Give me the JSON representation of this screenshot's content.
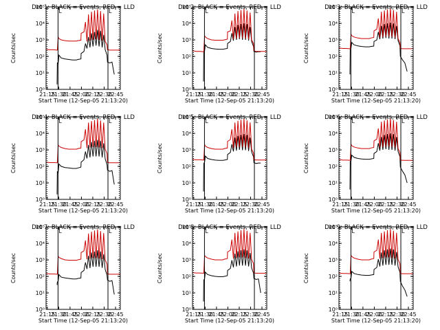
{
  "figure": {
    "background": "#ffffff",
    "events_color": "#000000",
    "lld_color": "#cc0000"
  },
  "chart_data": {
    "type": "line",
    "layout": "3x3 grid",
    "xlabel": "Start Time (12-Sep-05 21:13:20)",
    "ylabel": "Counts/sec",
    "yscale": "log",
    "ylim": [
      1,
      100000
    ],
    "ytick_labels": [
      "10⁰",
      "10¹",
      "10²",
      "10³",
      "10⁴",
      "10⁵"
    ],
    "xlim_minutes": [
      0,
      98
    ],
    "xtick_labels": [
      "21:15",
      "21:30",
      "21:45",
      "22:00",
      "22:15",
      "22:30",
      "22:45"
    ],
    "xtick_minutes": [
      1.67,
      16.67,
      31.67,
      46.67,
      61.67,
      76.67,
      91.67
    ],
    "markers_minutes": [
      15.8,
      81.7
    ],
    "marker_label": "L",
    "legend_text": "BLACK = Events, RED = LLD",
    "time_minutes": [
      0,
      5,
      10,
      14.5,
      14.9,
      16,
      17,
      20,
      25,
      30,
      35,
      40,
      42,
      46,
      46.3,
      50,
      52,
      54,
      56,
      58,
      60,
      62,
      64,
      66,
      68,
      70,
      72,
      74,
      76,
      78,
      80.5,
      81,
      84,
      87,
      90,
      95,
      98
    ],
    "panels": [
      {
        "title": "Det 1",
        "series": [
          {
            "name": "Events",
            "values": [
              null,
              null,
              null,
              2,
              40,
              35,
              120,
              80,
              70,
              65,
              60,
              60,
              65,
              70,
              150,
              200,
              600,
              300,
              1500,
              350,
              2500,
              400,
              3000,
              450,
              4000,
              400,
              3500,
              350,
              2000,
              250,
              120,
              45,
              40,
              45,
              8,
              null,
              null
            ]
          },
          {
            "name": "LLD",
            "values": [
              260,
              250,
              250,
              240,
              240,
              1500,
              1200,
              1000,
              900,
              850,
              850,
              850,
              900,
              950,
              2500,
              3000,
              12000,
              800,
              35000,
              900,
              50000,
              1000,
              60000,
              1100,
              70000,
              1000,
              55000,
              900,
              40000,
              800,
              500,
              250,
              240,
              240,
              240,
              240,
              250
            ]
          }
        ]
      },
      {
        "title": "Det 2",
        "series": [
          {
            "name": "Events",
            "values": [
              null,
              null,
              null,
              3,
              180,
              220,
              500,
              350,
              300,
              280,
              270,
              270,
              280,
              300,
              600,
              800,
              2500,
              900,
              6000,
              1000,
              8000,
              1100,
              9000,
              1000,
              10000,
              1000,
              9000,
              900,
              6000,
              800,
              400,
              200,
              180,
              190,
              190,
              null,
              null
            ]
          },
          {
            "name": "LLD",
            "values": [
              220,
              200,
              200,
              190,
              190,
              1800,
              1500,
              1200,
              1000,
              950,
              950,
              950,
              1000,
              1100,
              3000,
              3500,
              15000,
              1100,
              40000,
              1200,
              55000,
              1300,
              65000,
              1300,
              75000,
              1200,
              60000,
              1100,
              45000,
              1000,
              600,
              220,
              200,
              200,
              200,
              200,
              200
            ]
          }
        ]
      },
      {
        "title": "Det 3",
        "series": [
          {
            "name": "Events",
            "values": [
              null,
              null,
              null,
              8,
              300,
              320,
              700,
              500,
              430,
              400,
              380,
              380,
              400,
              420,
              800,
              1000,
              3000,
              1100,
              7000,
              1200,
              9000,
              1300,
              10000,
              1200,
              11000,
              1200,
              10000,
              1100,
              7000,
              900,
              450,
              100,
              60,
              40,
              12,
              null,
              null
            ]
          },
          {
            "name": "LLD",
            "values": [
              330,
              300,
              300,
              290,
              290,
              2200,
              1800,
              1500,
              1300,
              1200,
              1200,
              1200,
              1300,
              1400,
              3500,
              4500,
              20000,
              1400,
              50000,
              1500,
              60000,
              1600,
              70000,
              1600,
              80000,
              1500,
              65000,
              1400,
              50000,
              1200,
              700,
              300,
              290,
              290,
              290,
              290,
              300
            ]
          }
        ]
      },
      {
        "title": "Det 4",
        "series": [
          {
            "name": "Events",
            "values": [
              null,
              null,
              null,
              2,
              50,
              40,
              140,
              100,
              85,
              80,
              75,
              75,
              80,
              90,
              180,
              250,
              800,
              300,
              2000,
              350,
              3000,
              400,
              3500,
              400,
              4000,
              400,
              3500,
              350,
              2500,
              280,
              130,
              60,
              50,
              55,
              8,
              null,
              null
            ]
          },
          {
            "name": "LLD",
            "values": [
              180,
              170,
              170,
              165,
              165,
              2000,
              1700,
              1400,
              1200,
              1100,
              1100,
              1100,
              1200,
              1300,
              3200,
              4000,
              18000,
              1300,
              45000,
              1400,
              55000,
              1500,
              65000,
              1500,
              75000,
              1400,
              60000,
              1300,
              45000,
              1100,
              600,
              170,
              165,
              165,
              165,
              165,
              170
            ]
          }
        ]
      },
      {
        "title": "Det 5",
        "series": [
          {
            "name": "Events",
            "values": [
              null,
              null,
              null,
              3,
              150,
              180,
              420,
              300,
              260,
              240,
              230,
              230,
              240,
              260,
              520,
              700,
              2200,
              800,
              5500,
              900,
              7000,
              1000,
              8000,
              950,
              9000,
              950,
              8000,
              850,
              5500,
              750,
              380,
              170,
              150,
              160,
              160,
              null,
              null
            ]
          },
          {
            "name": "LLD",
            "values": [
              260,
              250,
              250,
              245,
              245,
              2100,
              1700,
              1400,
              1200,
              1100,
              1100,
              1100,
              1200,
              1300,
              3300,
              4200,
              18000,
              1300,
              45000,
              1400,
              58000,
              1500,
              68000,
              1500,
              78000,
              1400,
              62000,
              1300,
              46000,
              1100,
              650,
              250,
              245,
              245,
              245,
              245,
              250
            ]
          }
        ]
      },
      {
        "title": "Det 6",
        "series": [
          {
            "name": "Events",
            "values": [
              null,
              null,
              null,
              4,
              200,
              220,
              480,
              350,
              300,
              280,
              270,
              270,
              280,
              300,
              600,
              800,
              2500,
              900,
              6000,
              1000,
              8000,
              1100,
              9000,
              1000,
              10000,
              1000,
              9000,
              900,
              6000,
              800,
              400,
              90,
              50,
              30,
              10,
              null,
              null
            ]
          },
          {
            "name": "LLD",
            "values": [
              260,
              240,
              240,
              235,
              235,
              2200,
              1800,
              1500,
              1300,
              1200,
              1200,
              1200,
              1300,
              1400,
              3500,
              4500,
              20000,
              1400,
              50000,
              1500,
              60000,
              1600,
              70000,
              1600,
              80000,
              1500,
              65000,
              1400,
              50000,
              1200,
              700,
              240,
              235,
              230,
              230,
              230,
              235
            ]
          }
        ]
      },
      {
        "title": "Det 7",
        "series": [
          {
            "name": "Events",
            "values": [
              null,
              null,
              null,
              30,
              45,
              50,
              130,
              90,
              80,
              75,
              70,
              70,
              75,
              80,
              170,
              230,
              700,
              280,
              1800,
              320,
              2800,
              380,
              3200,
              380,
              3800,
              380,
              3200,
              330,
              2200,
              260,
              120,
              60,
              50,
              55,
              8,
              null,
              null
            ]
          },
          {
            "name": "LLD",
            "values": [
              150,
              140,
              140,
              135,
              135,
              1700,
              1400,
              1200,
              1000,
              950,
              950,
              950,
              1000,
              1100,
              2800,
              3500,
              15000,
              1100,
              40000,
              1200,
              50000,
              1300,
              60000,
              1300,
              70000,
              1200,
              55000,
              1100,
              42000,
              1000,
              550,
              140,
              135,
              135,
              135,
              135,
              140
            ]
          }
        ]
      },
      {
        "title": "Det 8",
        "series": [
          {
            "name": "Events",
            "values": [
              null,
              null,
              null,
              3,
              60,
              70,
              180,
              130,
              110,
              100,
              95,
              95,
              100,
              110,
              230,
              300,
              950,
              350,
              2400,
              400,
              3300,
              450,
              3800,
              450,
              4300,
              450,
              3800,
              400,
              2600,
              320,
              160,
              75,
              65,
              70,
              10,
              null,
              null
            ]
          },
          {
            "name": "LLD",
            "values": [
              170,
              160,
              160,
              155,
              155,
              1900,
              1600,
              1300,
              1100,
              1000,
              1000,
              1000,
              1100,
              1200,
              3000,
              3800,
              17000,
              1200,
              43000,
              1300,
              53000,
              1400,
              63000,
              1400,
              73000,
              1300,
              58000,
              1200,
              44000,
              1050,
              600,
              160,
              155,
              155,
              155,
              155,
              160
            ]
          }
        ]
      },
      {
        "title": "Det 9",
        "series": [
          {
            "name": "Events",
            "values": [
              null,
              null,
              null,
              50,
              70,
              80,
              200,
              150,
              130,
              120,
              115,
              115,
              120,
              130,
              260,
              350,
              1100,
              400,
              2800,
              450,
              3800,
              500,
              4300,
              500,
              4800,
              500,
              4300,
              450,
              3000,
              380,
              180,
              50,
              25,
              15,
              6,
              null,
              null
            ]
          },
          {
            "name": "LLD",
            "values": [
              160,
              150,
              150,
              145,
              145,
              1900,
              1600,
              1300,
              1100,
              1000,
              1000,
              1000,
              1100,
              1200,
              3000,
              3800,
              17000,
              1200,
              43000,
              1300,
              53000,
              1400,
              63000,
              1400,
              73000,
              1300,
              58000,
              1200,
              44000,
              1050,
              600,
              150,
              145,
              145,
              145,
              145,
              150
            ]
          }
        ]
      }
    ]
  }
}
